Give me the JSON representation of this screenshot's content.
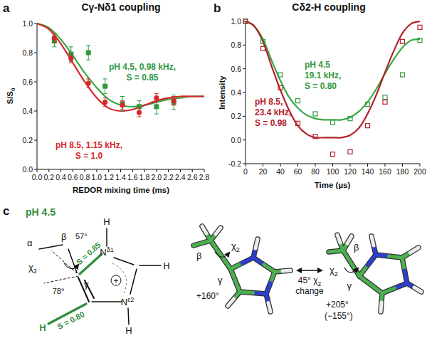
{
  "chart_data": [
    {
      "type": "scatter",
      "panel_label": "a",
      "title": "Cγ-Nδ1 coupling",
      "x_label": "REDOR mixing time (ms)",
      "y_label": {
        "text": "S/S",
        "sub": "0"
      },
      "xlim": [
        0,
        2.8
      ],
      "xticks": [
        {
          "value": 0,
          "label": "0.0"
        },
        0.2,
        0.4,
        0.6,
        0.8,
        {
          "value": 1,
          "label": "1.0"
        },
        1.2,
        1.4,
        1.6,
        1.8,
        {
          "value": 2,
          "label": "2.0"
        },
        2.2,
        2.4,
        2.6,
        2.8
      ],
      "ylim": [
        0,
        1
      ],
      "yticks": [
        {
          "value": 0,
          "label": "0.0"
        },
        0.2,
        0.4,
        0.6,
        0.8,
        {
          "value": 1,
          "label": "1.0"
        }
      ],
      "series": [
        {
          "type": "line",
          "color": "#3aa845",
          "x": [
            0,
            0.2,
            0.4,
            0.6,
            0.8,
            1,
            1.2,
            1.4,
            1.6,
            1.8,
            2,
            2.2,
            2.4,
            2.6,
            2.8
          ],
          "values": [
            1,
            0.97,
            0.89,
            0.78,
            0.66,
            0.56,
            0.48,
            0.44,
            0.43,
            0.44,
            0.46,
            0.48,
            0.49,
            0.5,
            0.5
          ]
        },
        {
          "type": "line",
          "color": "#d8262c",
          "x": [
            0,
            0.2,
            0.4,
            0.6,
            0.8,
            1,
            1.2,
            1.4,
            1.6,
            1.8,
            2,
            2.2,
            2.4,
            2.6,
            2.8
          ],
          "values": [
            1,
            0.96,
            0.86,
            0.73,
            0.6,
            0.49,
            0.42,
            0.4,
            0.41,
            0.44,
            0.47,
            0.49,
            0.5,
            0.5,
            0.5
          ]
        },
        {
          "type": "scatter",
          "color": "#2f9a3c",
          "marker": "square",
          "x": [
            0.29,
            0.57,
            0.86,
            1.14,
            1.43,
            1.71,
            2.0,
            2.29
          ],
          "values": [
            0.88,
            0.79,
            0.8,
            0.57,
            0.45,
            0.43,
            0.43,
            0.46
          ],
          "errors": [
            0.04,
            0.05,
            0.05,
            0.05,
            0.05,
            0.04,
            0.05,
            0.05
          ],
          "annotation": [
            "pH 4.5, 0.98 kHz,",
            "S = 0.85"
          ]
        },
        {
          "type": "scatter",
          "color": "#d8262c",
          "marker": "circle",
          "x": [
            0.29,
            0.57,
            0.86,
            1.14,
            1.43,
            1.71,
            2.0,
            2.29
          ],
          "values": [
            0.9,
            0.76,
            0.59,
            0.46,
            0.44,
            0.39,
            0.49,
            0.47
          ],
          "errors": [
            0.03,
            0.03,
            0.03,
            0.03,
            0.03,
            0.03,
            0.03,
            0.03
          ],
          "annotation": [
            "pH 8.5, 1.15 kHz,",
            "S = 1.0"
          ]
        }
      ]
    },
    {
      "type": "scatter",
      "panel_label": "b",
      "title": "Cδ2-H coupling",
      "x_label": "Time (µs)",
      "y_label": "Intensity",
      "xlim": [
        0,
        200
      ],
      "xticks": [
        0,
        20,
        40,
        60,
        80,
        100,
        120,
        140,
        160,
        180,
        200
      ],
      "ylim": [
        -0.2,
        1
      ],
      "yticks": [
        -0.2,
        {
          "value": 0,
          "label": "0.0"
        },
        0.2,
        0.4,
        0.6,
        0.8,
        {
          "value": 1,
          "label": "1.0"
        }
      ],
      "series": [
        {
          "type": "line",
          "color": "#3aa845",
          "x": [
            0,
            10,
            20,
            30,
            40,
            50,
            60,
            70,
            80,
            90,
            100,
            110,
            120,
            130,
            140,
            150,
            160,
            170,
            180,
            190,
            200
          ],
          "values": [
            1,
            0.96,
            0.85,
            0.67,
            0.5,
            0.36,
            0.27,
            0.21,
            0.18,
            0.17,
            0.17,
            0.17,
            0.19,
            0.24,
            0.32,
            0.43,
            0.56,
            0.68,
            0.78,
            0.84,
            0.85
          ]
        },
        {
          "type": "line",
          "color": "#b3212a",
          "x": [
            0,
            10,
            20,
            30,
            40,
            50,
            60,
            70,
            80,
            90,
            100,
            110,
            120,
            130,
            140,
            150,
            160,
            170,
            180,
            190,
            200
          ],
          "values": [
            1,
            0.96,
            0.83,
            0.62,
            0.42,
            0.25,
            0.12,
            0.05,
            0.02,
            0.02,
            0.02,
            0.02,
            0.04,
            0.1,
            0.22,
            0.38,
            0.57,
            0.75,
            0.9,
            0.98,
            1
          ]
        },
        {
          "type": "scatter",
          "color": "#2f9a3c",
          "marker": "open-square",
          "x": [
            0,
            20,
            40,
            60,
            80,
            100,
            120,
            140,
            160,
            180,
            200
          ],
          "values": [
            1,
            0.83,
            0.55,
            0.33,
            0.22,
            0.15,
            0.18,
            0.3,
            0.36,
            0.55,
            0.84
          ],
          "annotation": [
            "pH 4.5",
            "19.1 kHz,",
            "S = 0.80"
          ]
        },
        {
          "type": "scatter",
          "color": "#b3212a",
          "marker": "open-square",
          "x": [
            0,
            20,
            40,
            60,
            80,
            100,
            120,
            140,
            160,
            180,
            200
          ],
          "values": [
            1,
            0.77,
            0.44,
            0.14,
            0.03,
            -0.12,
            -0.1,
            0.12,
            0.32,
            0.83,
            0.95
          ],
          "annotation": [
            "pH 8.5,",
            "23.4 kHz,",
            "S = 0.98"
          ]
        }
      ]
    }
  ],
  "diagram": {
    "panel_label": "c",
    "title": "pH 4.5",
    "color": "#2f8f3c",
    "structure": {
      "alpha": "α",
      "beta": "β",
      "gamma": "γ",
      "chi": {
        "text": "χ",
        "sub": "2"
      },
      "s_cg_nd1": "S = 0.85",
      "s_cd2_h": "S = 0.80",
      "angle_cg_nd1": "57°",
      "angle_cd2_h": "78°",
      "n_delta1": {
        "text": "N",
        "sup": "δ1"
      },
      "n_epsilon2": {
        "text": "N",
        "sup": "ε2"
      },
      "h_nd1": "H",
      "h_ce1": "H",
      "h_ne2": "H",
      "h_cd2": "H",
      "charge": "+"
    },
    "models": {
      "left": {
        "beta": "β",
        "gamma": "γ",
        "chi": {
          "text": "χ",
          "sub": "2"
        },
        "angle": "+160°"
      },
      "change": [
        {
          "text": "45° χ",
          "sub": "2"
        },
        "change"
      ],
      "right": {
        "beta": "β",
        "gamma": "γ",
        "chi": {
          "text": "χ",
          "sub": "2"
        },
        "angle": "+205°",
        "angle_alt": "(−155°)"
      }
    }
  }
}
